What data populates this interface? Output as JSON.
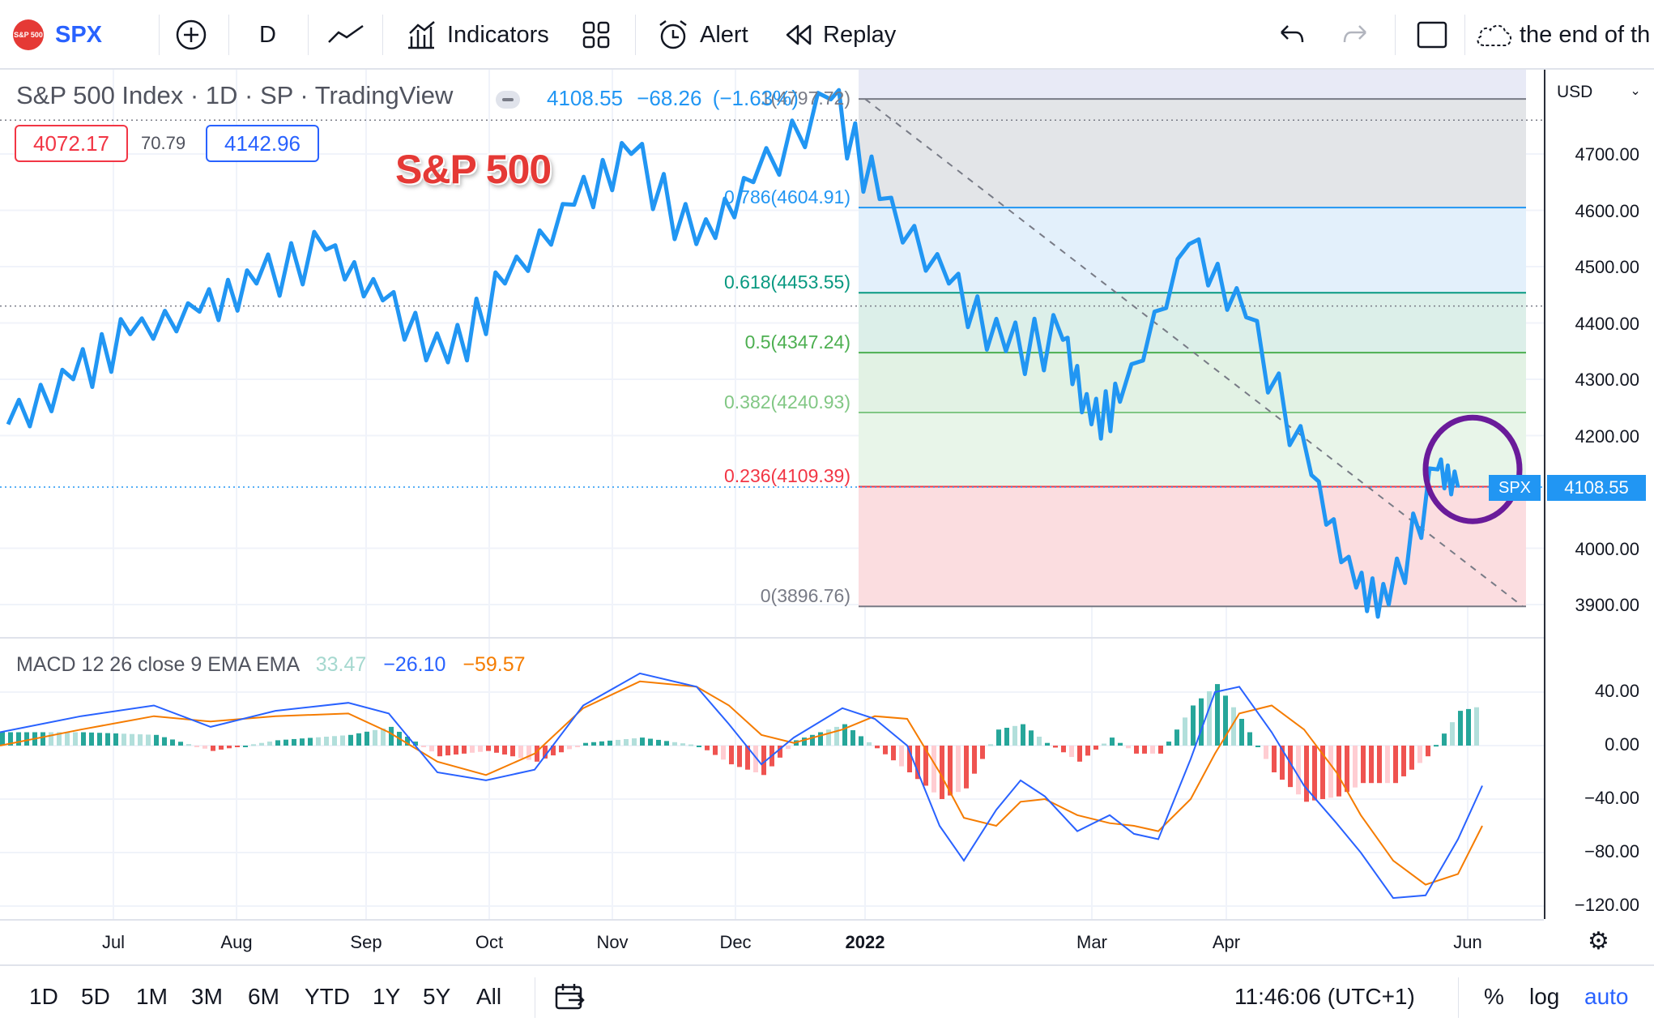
{
  "toolbar": {
    "logo_text": "S&P 500",
    "symbol": "SPX",
    "interval": "D",
    "indicators_label": "Indicators",
    "alert_label": "Alert",
    "replay_label": "Replay",
    "layout_name": "the end of th"
  },
  "legend": {
    "title": "S&P 500 Index · 1D · SP · TradingView",
    "price": "4108.55",
    "change": "−68.26",
    "change_pct": "(−1.63%)",
    "bid": "4072.17",
    "spread": "70.79",
    "ask": "4142.96"
  },
  "overlay_title": "S&P 500",
  "currency": "USD",
  "price_axis": [
    "4700.00",
    "4600.00",
    "4500.00",
    "4400.00",
    "4300.00",
    "4200.00",
    "4000.00",
    "3900.00"
  ],
  "current_price_tag": "4108.55",
  "symbol_tag": "SPX",
  "fib_levels": [
    {
      "label": "1(4797.72)",
      "value": 4797.72,
      "color": "#787b86"
    },
    {
      "label": "0.786(4604.91)",
      "value": 4604.91,
      "color": "#2196f3"
    },
    {
      "label": "0.618(4453.55)",
      "value": 4453.55,
      "color": "#089981"
    },
    {
      "label": "0.5(4347.24)",
      "value": 4347.24,
      "color": "#4caf50"
    },
    {
      "label": "0.382(4240.93)",
      "value": 4240.93,
      "color": "#81c784"
    },
    {
      "label": "0.236(4109.39)",
      "value": 4109.39,
      "color": "#f23645"
    },
    {
      "label": "0(3896.76)",
      "value": 3896.76,
      "color": "#787b86"
    }
  ],
  "macd": {
    "label": "MACD 12 26 close 9 EMA EMA",
    "hist": "33.47",
    "macd": "−26.10",
    "signal": "−59.57",
    "axis": [
      "40.00",
      "0.00",
      "−40.00",
      "−80.00",
      "−120.00"
    ]
  },
  "time_axis": [
    "Jul",
    "Aug",
    "Sep",
    "Oct",
    "Nov",
    "Dec",
    "2022",
    "Mar",
    "Apr",
    "Jun"
  ],
  "bottom": {
    "ranges": [
      "1D",
      "5D",
      "1M",
      "3M",
      "6M",
      "YTD",
      "1Y",
      "5Y",
      "All"
    ],
    "clock": "11:46:06 (UTC+1)",
    "percent": "%",
    "log": "log",
    "auto": "auto"
  },
  "chart_data": {
    "type": "line",
    "title": "S&P 500",
    "ylabel": "USD",
    "ylim": [
      3850,
      4850
    ],
    "x": [
      "2021-06-15",
      "2021-07-01",
      "2021-07-15",
      "2021-08-01",
      "2021-08-15",
      "2021-09-01",
      "2021-09-15",
      "2021-10-01",
      "2021-10-15",
      "2021-11-01",
      "2021-11-15",
      "2021-12-01",
      "2021-12-15",
      "2022-01-03",
      "2022-01-15",
      "2022-02-01",
      "2022-02-15",
      "2022-03-01",
      "2022-03-08",
      "2022-03-15",
      "2022-04-01",
      "2022-04-15",
      "2022-05-01",
      "2022-05-12",
      "2022-05-20",
      "2022-06-01",
      "2022-06-06"
    ],
    "values": [
      4220,
      4300,
      4380,
      4420,
      4470,
      4530,
      4440,
      4330,
      4470,
      4610,
      4700,
      4540,
      4650,
      4797,
      4620,
      4470,
      4350,
      4370,
      4220,
      4260,
      4540,
      4410,
      4130,
      3930,
      3900,
      4140,
      4108
    ]
  }
}
